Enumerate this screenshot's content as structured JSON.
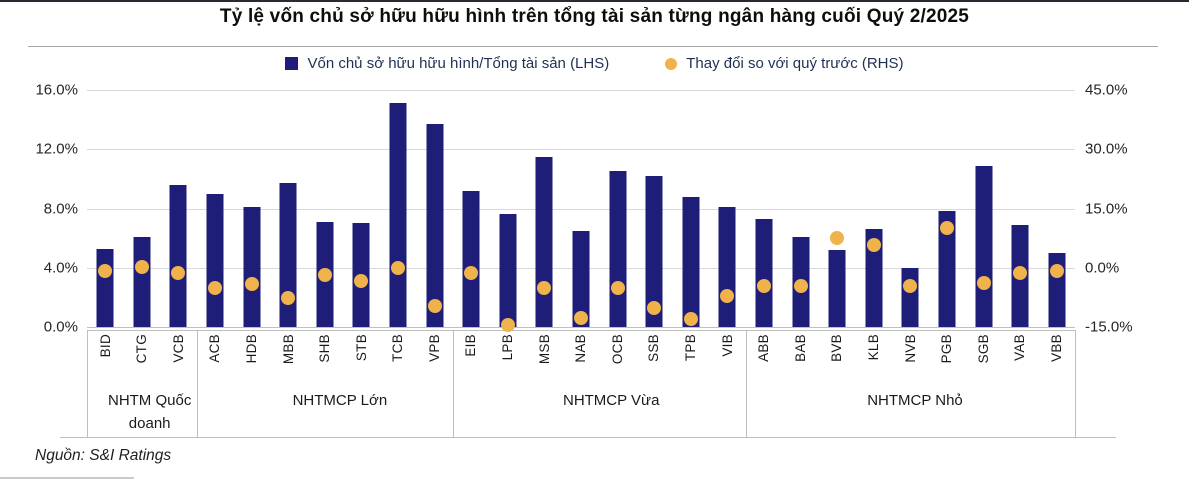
{
  "title": "Tỷ lệ vốn chủ sở hữu hữu hình trên tổng tài sản từng ngân hàng cuối Quý 2/2025",
  "source": "Nguồn: S&I Ratings",
  "colors": {
    "bar_navy": "#1e1e78",
    "dot_gold": "#f0b24a"
  },
  "legend": [
    {
      "label": "Vốn chủ sở hữu hữu hình/Tổng tài sản (LHS)",
      "marker": "square",
      "color": "#1e1e78"
    },
    {
      "label": "Thay đổi so với quý trước (RHS)",
      "marker": "circle",
      "color": "#f0b24a"
    }
  ],
  "chart_data": {
    "type": "bar",
    "title": "Tỷ lệ vốn chủ sở hữu hữu hình trên tổng tài sản từng ngân hàng cuối Quý 2/2025",
    "categories": [
      "BID",
      "CTG",
      "VCB",
      "ACB",
      "HDB",
      "MBB",
      "SHB",
      "STB",
      "TCB",
      "VPB",
      "EIB",
      "LPB",
      "MSB",
      "NAB",
      "OCB",
      "SSB",
      "TPB",
      "VIB",
      "ABB",
      "BAB",
      "BVB",
      "KLB",
      "NVB",
      "PGB",
      "SGB",
      "VAB",
      "VBB"
    ],
    "groups": [
      {
        "label": "NHTM Quốc doanh",
        "count": 3
      },
      {
        "label": "NHTMCP Lớn",
        "count": 7
      },
      {
        "label": "NHTMCP Vừa",
        "count": 8
      },
      {
        "label": "NHTMCP Nhỏ",
        "count": 9
      }
    ],
    "series": [
      {
        "name": "Vốn chủ sở hữu hữu hình/Tổng tài sản (LHS)",
        "type": "bar",
        "axis": "left",
        "values": [
          5.3,
          6.1,
          9.6,
          9.0,
          8.1,
          9.7,
          7.1,
          7.0,
          15.1,
          13.7,
          9.2,
          7.6,
          11.5,
          6.5,
          10.5,
          10.2,
          8.8,
          8.1,
          7.3,
          6.1,
          5.2,
          6.6,
          4.0,
          7.8,
          10.9,
          6.9,
          5.0
        ]
      },
      {
        "name": "Thay đổi so với quý trước (RHS)",
        "type": "scatter",
        "axis": "right",
        "values": [
          -0.8,
          0.3,
          -1.2,
          -5.0,
          -4.1,
          -7.7,
          -1.9,
          -3.3,
          0.0,
          -9.7,
          -1.2,
          -14.5,
          -5.1,
          -12.8,
          -5.1,
          -10.3,
          -13.0,
          -7.2,
          -4.7,
          -4.7,
          7.5,
          5.7,
          -4.7,
          10.0,
          -3.8,
          -1.2,
          -0.8
        ]
      }
    ],
    "left_axis": {
      "ticks": [
        "16.0%",
        "12.0%",
        "8.0%",
        "4.0%",
        "0.0%"
      ],
      "range": [
        0,
        16
      ]
    },
    "right_axis": {
      "ticks": [
        "45.0%",
        "30.0%",
        "15.0%",
        "0.0%",
        "-15.0%"
      ],
      "range": [
        -15,
        45
      ]
    },
    "grid": true,
    "legend_position": "top"
  }
}
